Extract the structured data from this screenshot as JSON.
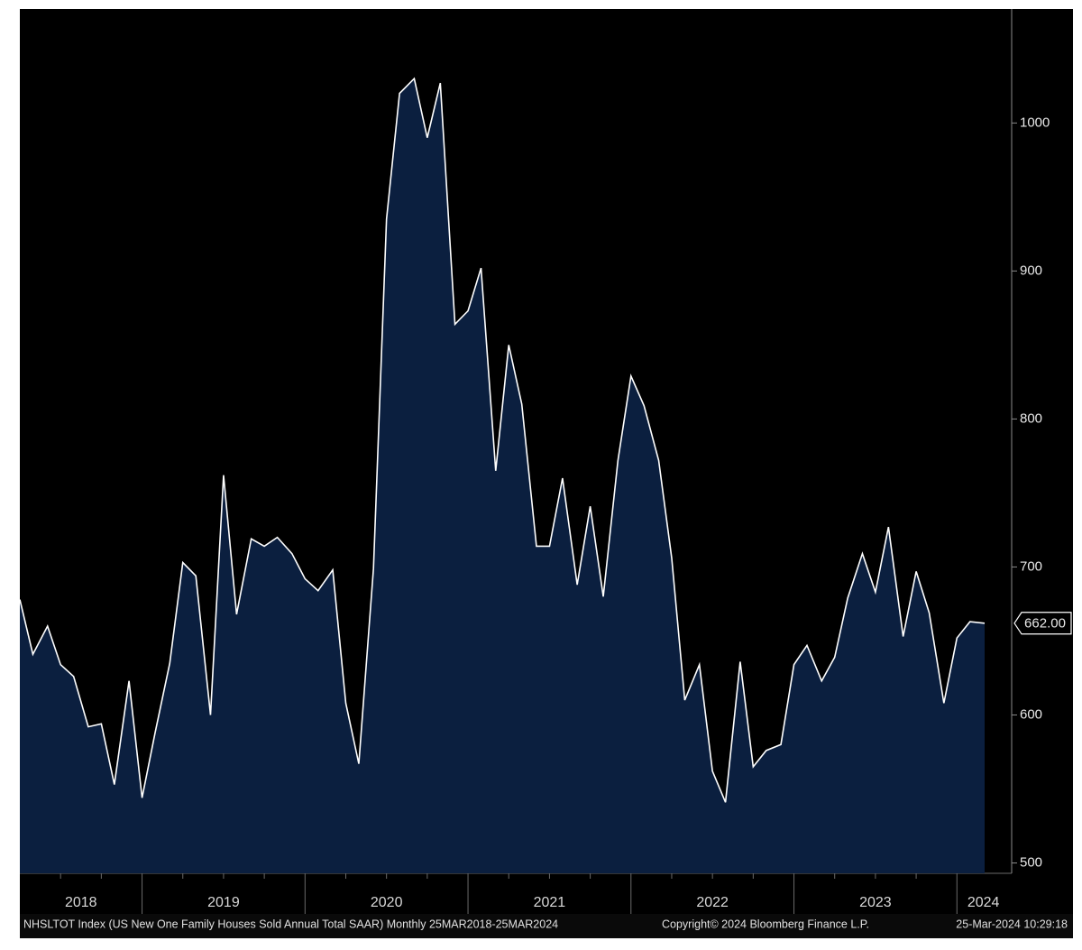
{
  "chart_data": {
    "type": "area",
    "x": [
      2018.25,
      2018.33,
      2018.42,
      2018.5,
      2018.58,
      2018.67,
      2018.75,
      2018.83,
      2018.92,
      2019,
      2019.08,
      2019.17,
      2019.25,
      2019.33,
      2019.42,
      2019.5,
      2019.58,
      2019.67,
      2019.75,
      2019.83,
      2019.92,
      2020,
      2020.08,
      2020.17,
      2020.25,
      2020.33,
      2020.42,
      2020.5,
      2020.58,
      2020.67,
      2020.75,
      2020.83,
      2020.92,
      2021,
      2021.08,
      2021.17,
      2021.25,
      2021.33,
      2021.42,
      2021.5,
      2021.58,
      2021.67,
      2021.75,
      2021.83,
      2021.92,
      2022,
      2022.08,
      2022.17,
      2022.25,
      2022.33,
      2022.42,
      2022.5,
      2022.58,
      2022.67,
      2022.75,
      2022.83,
      2022.92,
      2023,
      2023.08,
      2023.17,
      2023.25,
      2023.33,
      2023.42,
      2023.5,
      2023.58,
      2023.67,
      2023.75,
      2023.83,
      2023.92,
      2024,
      2024.08,
      2024.17
    ],
    "values": [
      678,
      641,
      660,
      634,
      626,
      592,
      594,
      553,
      623,
      544,
      588,
      635,
      703,
      694,
      600,
      762,
      668,
      719,
      714,
      720,
      709,
      692,
      684,
      698,
      608,
      567,
      699,
      935,
      1020,
      1030,
      990,
      1027,
      864,
      873,
      902,
      765,
      850,
      810,
      714,
      714,
      760,
      688,
      741,
      680,
      772,
      829,
      809,
      772,
      706,
      610,
      634,
      562,
      541,
      636,
      565,
      576,
      580,
      634,
      647,
      623,
      639,
      679,
      709,
      683,
      727,
      653,
      697,
      669,
      608,
      652,
      663,
      662
    ],
    "last_value_label": "662.00",
    "color": "#ffffff",
    "fill_color": "#0b1f3f",
    "xlim": [
      2018.25,
      2024.17
    ],
    "xticks": [
      2019,
      2020,
      2021,
      2022,
      2023,
      2024
    ],
    "xminorticks": [
      2018.5,
      2018.75,
      2019.25,
      2019.5,
      2019.75,
      2020.25,
      2020.5,
      2020.75,
      2021.25,
      2021.5,
      2021.75,
      2022.25,
      2022.5,
      2022.75,
      2023.25,
      2023.5,
      2023.75
    ],
    "x_labels": [
      "2018",
      "2019",
      "2020",
      "2021",
      "2022",
      "2023",
      "2024"
    ],
    "ylim": [
      493,
      1077
    ],
    "yticks": [
      500,
      600,
      700,
      800,
      900,
      1000
    ],
    "footer": [
      "NHSLTOT Index (US New One Family Houses Sold Annual Total SAAR)  Monthly 25MAR2018-25MAR2024",
      "Copyright© 2024 Bloomberg Finance L.P.",
      "25-Mar-2024 10:29:18"
    ]
  }
}
